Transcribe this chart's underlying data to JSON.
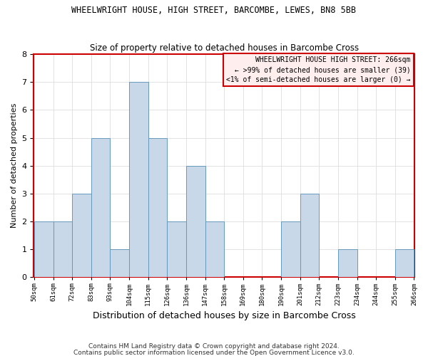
{
  "title": "WHEELWRIGHT HOUSE, HIGH STREET, BARCOMBE, LEWES, BN8 5BB",
  "subtitle": "Size of property relative to detached houses in Barcombe Cross",
  "xlabel": "Distribution of detached houses by size in Barcombe Cross",
  "ylabel": "Number of detached properties",
  "bin_labels": [
    "50sqm",
    "61sqm",
    "72sqm",
    "83sqm",
    "93sqm",
    "104sqm",
    "115sqm",
    "126sqm",
    "136sqm",
    "147sqm",
    "158sqm",
    "169sqm",
    "180sqm",
    "190sqm",
    "201sqm",
    "212sqm",
    "223sqm",
    "234sqm",
    "244sqm",
    "255sqm",
    "266sqm"
  ],
  "bar_heights": [
    2,
    2,
    3,
    5,
    1,
    7,
    5,
    2,
    4,
    2,
    0,
    0,
    0,
    2,
    3,
    0,
    1,
    0,
    0,
    1
  ],
  "bar_color": "#c8d8e8",
  "bar_edge_color": "#6699bb",
  "annotation_text": "WHEELWRIGHT HOUSE HIGH STREET: 266sqm\n← >99% of detached houses are smaller (39)\n<1% of semi-detached houses are larger (0) →",
  "annotation_bg": "#ffeeee",
  "annotation_edge": "#cc0000",
  "ylim": [
    0,
    8
  ],
  "yticks": [
    0,
    1,
    2,
    3,
    4,
    5,
    6,
    7,
    8
  ],
  "footnote1": "Contains HM Land Registry data © Crown copyright and database right 2024.",
  "footnote2": "Contains public sector information licensed under the Open Government Licence v3.0.",
  "bg_color": "#ffffff",
  "grid_color": "#dddddd",
  "spine_color": "#cc0000",
  "title_fontsize": 8.5,
  "subtitle_fontsize": 8.5,
  "ylabel_fontsize": 8,
  "xlabel_fontsize": 9,
  "tick_fontsize": 8,
  "annot_fontsize": 7
}
